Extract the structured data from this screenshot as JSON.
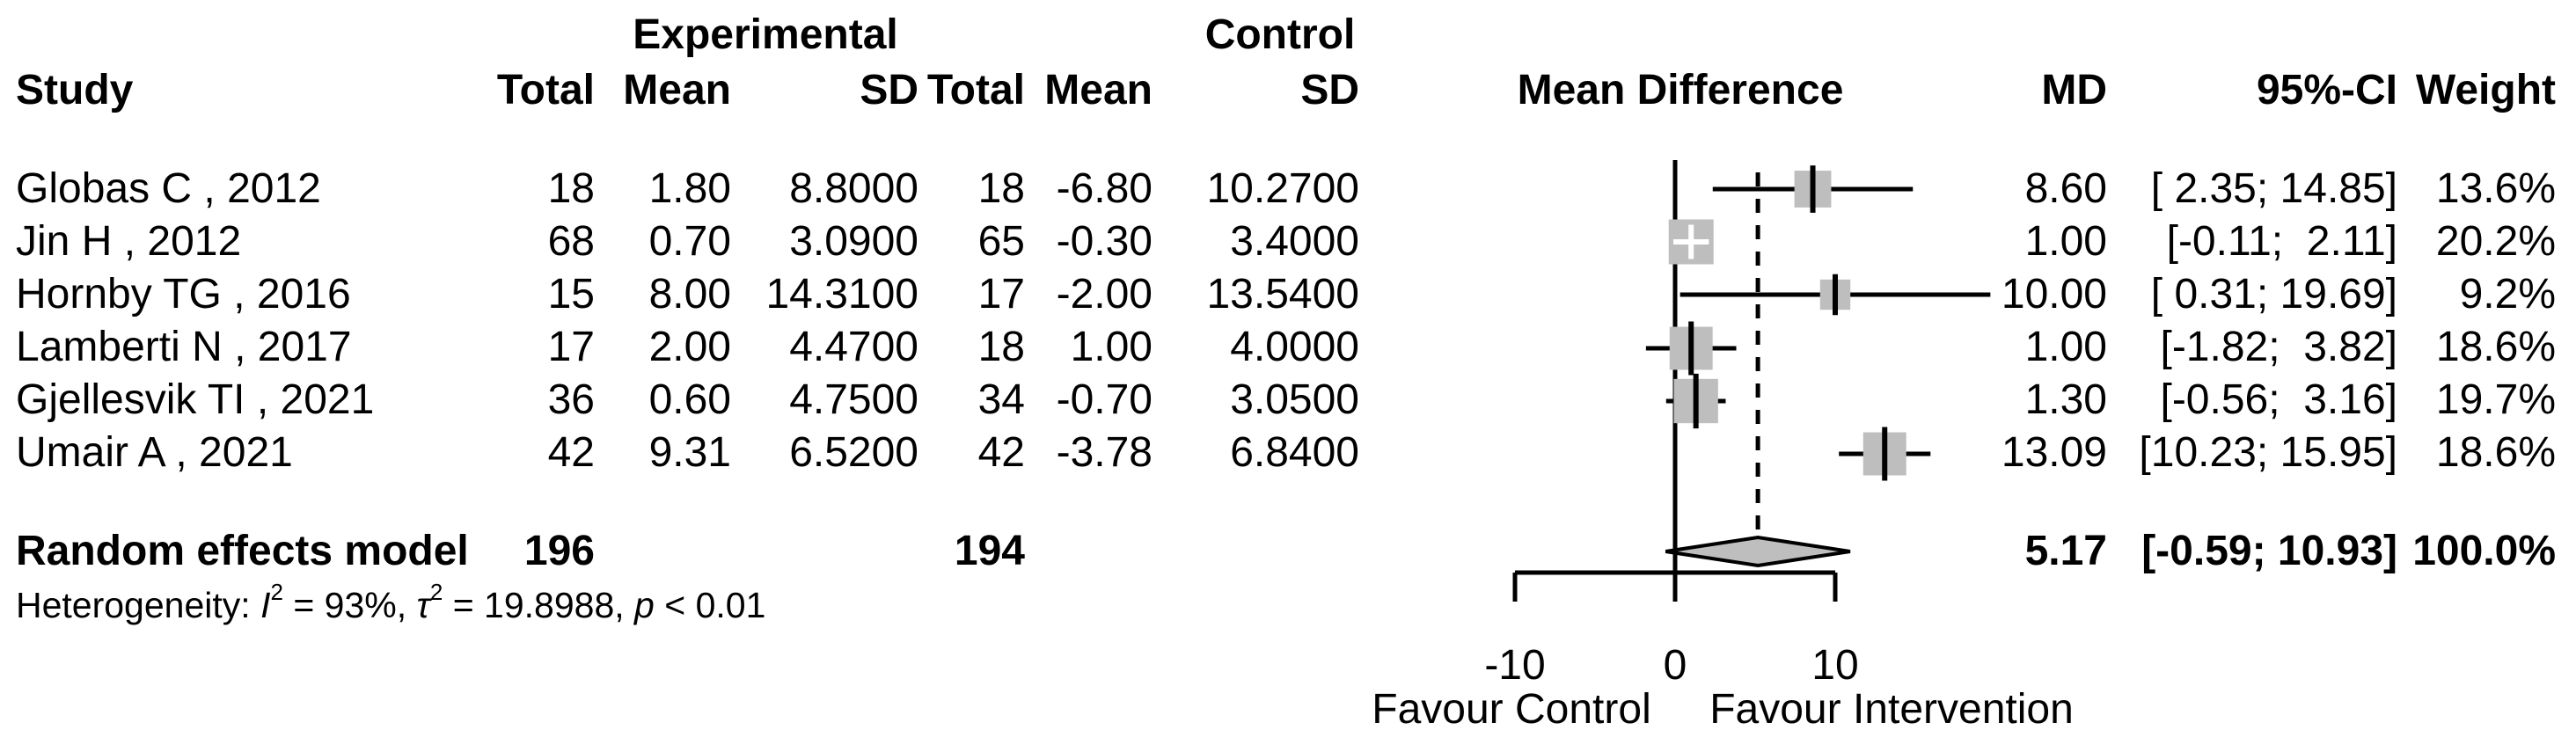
{
  "table": {
    "group_headers": {
      "experimental": "Experimental",
      "control": "Control"
    },
    "columns": {
      "study": "Study",
      "exp_total": "Total",
      "exp_mean": "Mean",
      "exp_sd": "SD",
      "ctl_total": "Total",
      "ctl_mean": "Mean",
      "ctl_sd": "SD",
      "plot": "Mean Difference",
      "md": "MD",
      "ci": "95%-CI",
      "weight": "Weight"
    },
    "rows": [
      {
        "study": "Globas C , 2012",
        "exp_total": "18",
        "exp_mean": "1.80",
        "exp_sd": "8.8000",
        "ctl_total": "18",
        "ctl_mean": "-6.80",
        "ctl_sd": "10.2700",
        "md": "8.60",
        "ci": "[ 2.35; 14.85]",
        "weight": "13.6%"
      },
      {
        "study": "Jin H , 2012",
        "exp_total": "68",
        "exp_mean": "0.70",
        "exp_sd": "3.0900",
        "ctl_total": "65",
        "ctl_mean": "-0.30",
        "ctl_sd": "3.4000",
        "md": "1.00",
        "ci": "[-0.11;  2.11]",
        "weight": "20.2%"
      },
      {
        "study": "Hornby TG , 2016",
        "exp_total": "15",
        "exp_mean": "8.00",
        "exp_sd": "14.3100",
        "ctl_total": "17",
        "ctl_mean": "-2.00",
        "ctl_sd": "13.5400",
        "md": "10.00",
        "ci": "[ 0.31; 19.69]",
        "weight": "9.2%"
      },
      {
        "study": "Lamberti N , 2017",
        "exp_total": "17",
        "exp_mean": "2.00",
        "exp_sd": "4.4700",
        "ctl_total": "18",
        "ctl_mean": "1.00",
        "ctl_sd": "4.0000",
        "md": "1.00",
        "ci": "[-1.82;  3.82]",
        "weight": "18.6%"
      },
      {
        "study": "Gjellesvik TI , 2021",
        "exp_total": "36",
        "exp_mean": "0.60",
        "exp_sd": "4.7500",
        "ctl_total": "34",
        "ctl_mean": "-0.70",
        "ctl_sd": "3.0500",
        "md": "1.30",
        "ci": "[-0.56;  3.16]",
        "weight": "19.7%"
      },
      {
        "study": "Umair A , 2021",
        "exp_total": "42",
        "exp_mean": "9.31",
        "exp_sd": "6.5200",
        "ctl_total": "42",
        "ctl_mean": "-3.78",
        "ctl_sd": "6.8400",
        "md": "13.09",
        "ci": "[10.23; 15.95]",
        "weight": "18.6%"
      }
    ],
    "summary": {
      "label": "Random effects model",
      "exp_total": "196",
      "ctl_total": "194",
      "md": "5.17",
      "ci": "[-0.59; 10.93]",
      "weight": "100.0%"
    },
    "heterogeneity": {
      "prefix": "Heterogeneity: ",
      "i_label": "I",
      "i_sup": "2",
      "i_text": " = 93%, ",
      "tau_label": "τ",
      "tau_sup": "2",
      "tau_text": " = 19.8988, ",
      "p_label": "p",
      "p_text": " < 0.01"
    }
  },
  "chart_data": {
    "type": "forest",
    "title": "Mean Difference",
    "effect_measure": "MD",
    "studies": [
      {
        "name": "Globas C , 2012",
        "md": 8.6,
        "lower": 2.35,
        "upper": 14.85,
        "weight_pct": 13.6
      },
      {
        "name": "Jin H , 2012",
        "md": 1.0,
        "lower": -0.11,
        "upper": 2.11,
        "weight_pct": 20.2
      },
      {
        "name": "Hornby TG , 2016",
        "md": 10.0,
        "lower": 0.31,
        "upper": 19.69,
        "weight_pct": 9.2
      },
      {
        "name": "Lamberti N , 2017",
        "md": 1.0,
        "lower": -1.82,
        "upper": 3.82,
        "weight_pct": 18.6
      },
      {
        "name": "Gjellesvik TI , 2021",
        "md": 1.3,
        "lower": -0.56,
        "upper": 3.16,
        "weight_pct": 19.7
      },
      {
        "name": "Umair A , 2021",
        "md": 13.09,
        "lower": 10.23,
        "upper": 15.95,
        "weight_pct": 18.6
      }
    ],
    "pooled": {
      "model": "Random effects model",
      "md": 5.17,
      "lower": -0.59,
      "upper": 10.93,
      "weight_pct": 100.0
    },
    "axis": {
      "ticks": [
        -10,
        0,
        10
      ],
      "tick_labels": [
        "-10",
        "0",
        "10"
      ],
      "zero_ref": 0
    },
    "annotations": {
      "favour_left": "Favour Control",
      "favour_right": "Favour Intervention"
    },
    "colors": {
      "square": "#bebebe",
      "diamond": "#bebebe",
      "line": "#000000",
      "background": "#ffffff"
    }
  }
}
